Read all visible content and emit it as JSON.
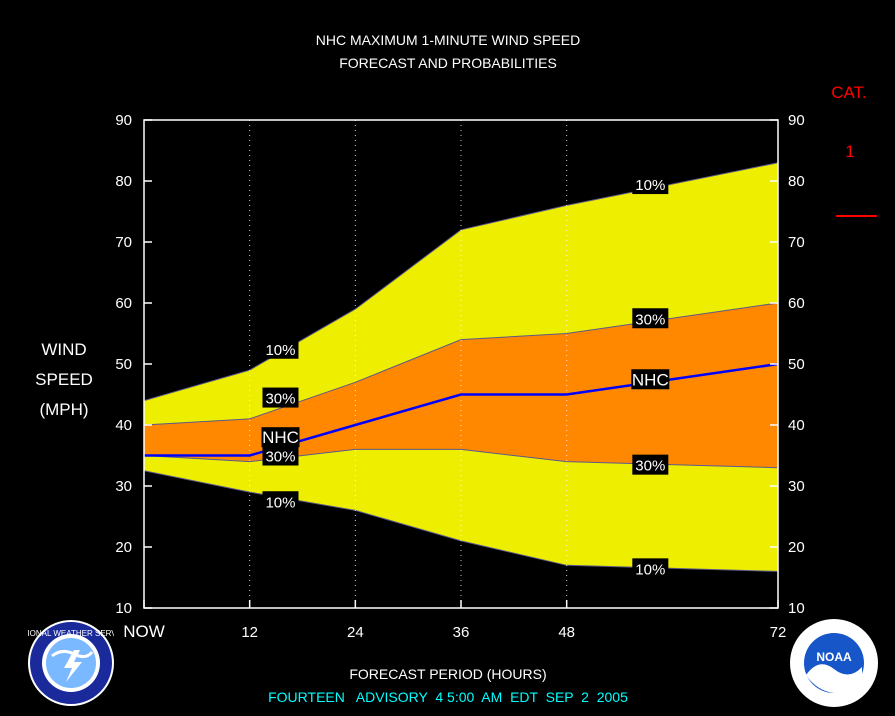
{
  "title_line1": "NHC MAXIMUM 1-MINUTE WIND SPEED",
  "title_line2": "FORECAST AND PROBABILITIES",
  "ylabel_lines": [
    "WIND",
    "SPEED",
    "(MPH)"
  ],
  "xlabel": "FORECAST PERIOD (HOURS)",
  "advisory": "FOURTEEN   ADVISORY  4 5:00  AM  EDT  SEP  2  2005",
  "category": {
    "title": "CAT.",
    "items": [
      "1"
    ],
    "colors": {
      "title": "#ff0000",
      "item": "#ff0000",
      "mark": "#ff0000"
    },
    "thresholds_mph": [
      74
    ]
  },
  "logos": {
    "left": {
      "icon": "nws-logo-icon",
      "text": "NATIONAL WEATHER SERVICE"
    },
    "right": {
      "icon": "noaa-logo-icon",
      "text": "NOAA"
    }
  },
  "colors": {
    "background": "#000000",
    "outer_band": "#eeee00",
    "inner_band": "#ff8800",
    "nhc_line": "#0000ff",
    "text": "#ffffff",
    "advisory_text": "#00ffff",
    "label_box": "#000000"
  },
  "chart_data": {
    "type": "area",
    "title": "NHC MAXIMUM 1-MINUTE WIND SPEED FORECAST AND PROBABILITIES",
    "xlabel": "FORECAST PERIOD (HOURS)",
    "ylabel": "WIND SPEED (MPH)",
    "xlim": [
      0,
      72
    ],
    "ylim": [
      10,
      90
    ],
    "x_ticks": [
      0,
      12,
      24,
      36,
      48,
      72
    ],
    "x_tick_labels": [
      "NOW",
      "12",
      "24",
      "36",
      "48",
      "72"
    ],
    "y_ticks": [
      10,
      20,
      30,
      40,
      50,
      60,
      70,
      80,
      90
    ],
    "dotted_gridlines_x": [
      12,
      24,
      36,
      48
    ],
    "series": [
      {
        "name": "10%",
        "x": [
          0,
          12,
          24,
          36,
          48,
          72
        ],
        "values": [
          44,
          49,
          59,
          72,
          76,
          83
        ]
      },
      {
        "name": "30%",
        "x": [
          0,
          12,
          24,
          36,
          48,
          72
        ],
        "values": [
          40,
          41,
          47,
          54,
          55,
          60
        ]
      },
      {
        "name": "NHC",
        "x": [
          0,
          12,
          24,
          36,
          48,
          72
        ],
        "values": [
          35,
          35,
          40,
          45,
          45,
          50
        ]
      },
      {
        "name": "30%",
        "x": [
          0,
          12,
          24,
          36,
          48,
          72
        ],
        "values": [
          35,
          34,
          36,
          36,
          34,
          33
        ]
      },
      {
        "name": "10%",
        "x": [
          0,
          12,
          24,
          36,
          48,
          72
        ],
        "values": [
          32.5,
          29,
          26,
          21,
          17,
          16
        ]
      }
    ],
    "labels": [
      {
        "text": "10%",
        "x": 15.5,
        "y": 52.5
      },
      {
        "text": "30%",
        "x": 15.5,
        "y": 44.5
      },
      {
        "text": "NHC",
        "x": 15.5,
        "y": 38
      },
      {
        "text": "30%",
        "x": 15.5,
        "y": 35
      },
      {
        "text": "10%",
        "x": 15.5,
        "y": 27.5
      },
      {
        "text": "10%",
        "x": 57.5,
        "y": 79.5
      },
      {
        "text": "30%",
        "x": 57.5,
        "y": 57.5
      },
      {
        "text": "NHC",
        "x": 57.5,
        "y": 47.5
      },
      {
        "text": "30%",
        "x": 57.5,
        "y": 33.5
      },
      {
        "text": "10%",
        "x": 57.5,
        "y": 16.5
      }
    ]
  }
}
